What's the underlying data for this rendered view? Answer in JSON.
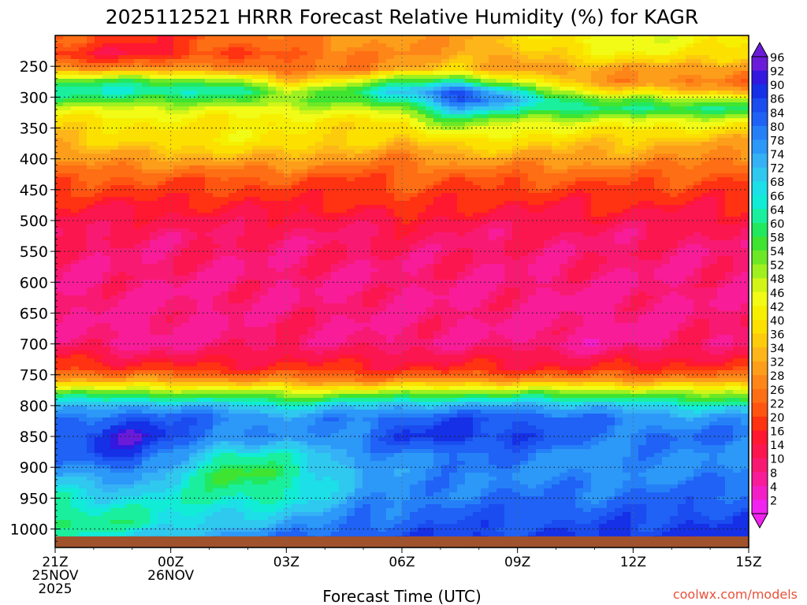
{
  "chart_data": {
    "type": "heatmap",
    "title": "2025112521 HRRR Forecast Relative Humidity (%) for KAGR",
    "xlabel": "Forecast Time (UTC)",
    "ylabel": "",
    "credit": "coolwx.com/models",
    "y_ticks": [
      "250",
      "300",
      "350",
      "400",
      "450",
      "500",
      "550",
      "600",
      "650",
      "700",
      "750",
      "800",
      "850",
      "900",
      "950",
      "1000"
    ],
    "y_values": [
      250,
      300,
      350,
      400,
      450,
      500,
      550,
      600,
      650,
      700,
      750,
      800,
      850,
      900,
      950,
      1000
    ],
    "ylim": [
      200,
      1030
    ],
    "x_ticks": [
      {
        "hours": 0,
        "lines": [
          "21Z",
          "25NOV",
          "2025"
        ]
      },
      {
        "hours": 3,
        "lines": [
          "00Z",
          "26NOV"
        ]
      },
      {
        "hours": 6,
        "lines": [
          "03Z"
        ]
      },
      {
        "hours": 9,
        "lines": [
          "06Z"
        ]
      },
      {
        "hours": 12,
        "lines": [
          "09Z"
        ]
      },
      {
        "hours": 15,
        "lines": [
          "12Z"
        ]
      },
      {
        "hours": 18,
        "lines": [
          "15Z"
        ]
      }
    ],
    "xlim": [
      0,
      18
    ],
    "colorbar": {
      "labels": [
        "96",
        "92",
        "90",
        "86",
        "84",
        "80",
        "78",
        "74",
        "72",
        "68",
        "66",
        "64",
        "60",
        "58",
        "54",
        "52",
        "48",
        "46",
        "42",
        "40",
        "36",
        "34",
        "32",
        "28",
        "26",
        "22",
        "20",
        "16",
        "14",
        "10",
        "8",
        "4",
        "2"
      ],
      "colors": [
        "#6a1bd9",
        "#3318e0",
        "#1530e6",
        "#1a4cf0",
        "#1f62f5",
        "#2580f7",
        "#2c98f8",
        "#35b1f5",
        "#2fc8ef",
        "#1ddfe8",
        "#11ecd6",
        "#1aef9e",
        "#22e860",
        "#3fe431",
        "#6de826",
        "#9ef020",
        "#d2f517",
        "#f2fb16",
        "#f6f000",
        "#fbe000",
        "#fccb0c",
        "#fdb51a",
        "#fd9e1a",
        "#fe8618",
        "#fe6e14",
        "#ff5511",
        "#ff3212",
        "#ff1830",
        "#fb1650",
        "#f81a72",
        "#f81c98",
        "#f41ec6",
        "#f122ef"
      ]
    },
    "surface_pressure": 1012,
    "rh_profiles": [
      {
        "hours": 0,
        "levels": [
          210,
          230,
          255,
          275,
          290,
          305,
          320,
          340,
          370,
          400,
          430,
          470,
          520,
          600,
          700,
          740,
          760,
          780,
          800,
          820,
          850,
          880,
          910,
          950,
          990,
          1012
        ],
        "values": [
          22,
          16,
          30,
          55,
          62,
          56,
          44,
          38,
          32,
          30,
          22,
          16,
          10,
          8,
          10,
          20,
          34,
          56,
          70,
          78,
          82,
          80,
          74,
          64,
          60,
          64
        ]
      },
      {
        "hours": 2,
        "levels": [
          210,
          230,
          255,
          275,
          290,
          305,
          320,
          340,
          370,
          400,
          430,
          470,
          520,
          600,
          700,
          740,
          760,
          780,
          800,
          820,
          850,
          880,
          910,
          950,
          990,
          1012
        ],
        "values": [
          16,
          14,
          28,
          58,
          66,
          56,
          46,
          40,
          38,
          30,
          22,
          16,
          10,
          8,
          6,
          18,
          32,
          54,
          74,
          84,
          92,
          88,
          78,
          68,
          62,
          68
        ]
      },
      {
        "hours": 4.5,
        "levels": [
          210,
          230,
          255,
          275,
          290,
          305,
          320,
          340,
          370,
          400,
          430,
          470,
          520,
          600,
          700,
          740,
          760,
          780,
          800,
          820,
          850,
          880,
          910,
          950,
          990,
          1012
        ],
        "values": [
          22,
          20,
          30,
          54,
          64,
          54,
          44,
          40,
          40,
          32,
          22,
          16,
          10,
          8,
          8,
          16,
          30,
          52,
          70,
          80,
          78,
          62,
          56,
          62,
          70,
          76
        ]
      },
      {
        "hours": 6,
        "levels": [
          210,
          230,
          255,
          275,
          290,
          305,
          320,
          340,
          370,
          400,
          430,
          470,
          520,
          600,
          700,
          740,
          760,
          780,
          800,
          820,
          850,
          880,
          910,
          950,
          990,
          1012
        ],
        "values": [
          26,
          22,
          22,
          34,
          50,
          52,
          46,
          40,
          40,
          32,
          22,
          16,
          10,
          8,
          10,
          18,
          28,
          48,
          66,
          74,
          76,
          66,
          60,
          64,
          74,
          80
        ]
      },
      {
        "hours": 8,
        "levels": [
          210,
          230,
          255,
          275,
          290,
          305,
          320,
          340,
          370,
          400,
          430,
          470,
          520,
          600,
          700,
          740,
          760,
          780,
          800,
          820,
          850,
          880,
          910,
          950,
          990,
          1012
        ],
        "values": [
          28,
          26,
          28,
          48,
          60,
          56,
          46,
          38,
          36,
          28,
          20,
          16,
          10,
          8,
          8,
          16,
          28,
          50,
          70,
          80,
          80,
          76,
          74,
          76,
          80,
          84
        ]
      },
      {
        "hours": 9,
        "levels": [
          210,
          230,
          255,
          275,
          290,
          305,
          320,
          340,
          370,
          400,
          430,
          470,
          520,
          600,
          700,
          740,
          760,
          780,
          800,
          820,
          850,
          880,
          910,
          950,
          990,
          1012
        ],
        "values": [
          28,
          28,
          32,
          56,
          70,
          64,
          52,
          40,
          34,
          26,
          22,
          20,
          12,
          8,
          8,
          16,
          28,
          52,
          72,
          82,
          86,
          78,
          76,
          78,
          82,
          84
        ]
      },
      {
        "hours": 10.5,
        "levels": [
          210,
          230,
          255,
          275,
          290,
          305,
          320,
          340,
          370,
          400,
          430,
          470,
          520,
          600,
          700,
          740,
          760,
          780,
          800,
          820,
          850,
          880,
          910,
          950,
          990,
          1012
        ],
        "values": [
          30,
          30,
          36,
          64,
          86,
          84,
          72,
          56,
          40,
          30,
          22,
          16,
          10,
          8,
          8,
          16,
          30,
          54,
          74,
          84,
          88,
          80,
          78,
          80,
          84,
          86
        ]
      },
      {
        "hours": 12,
        "levels": [
          210,
          230,
          255,
          275,
          290,
          305,
          320,
          340,
          370,
          400,
          430,
          470,
          520,
          600,
          700,
          740,
          760,
          780,
          800,
          820,
          850,
          880,
          910,
          950,
          990,
          1012
        ],
        "values": [
          36,
          34,
          30,
          44,
          62,
          72,
          64,
          46,
          38,
          30,
          22,
          16,
          10,
          8,
          8,
          16,
          30,
          54,
          74,
          84,
          86,
          80,
          78,
          80,
          84,
          86
        ]
      },
      {
        "hours": 14,
        "levels": [
          210,
          230,
          255,
          275,
          290,
          305,
          320,
          340,
          370,
          400,
          430,
          470,
          520,
          600,
          700,
          740,
          760,
          780,
          800,
          820,
          850,
          880,
          910,
          950,
          990,
          1012
        ],
        "values": [
          44,
          40,
          30,
          30,
          40,
          54,
          60,
          44,
          36,
          30,
          22,
          16,
          10,
          8,
          6,
          16,
          30,
          54,
          72,
          80,
          80,
          76,
          76,
          80,
          84,
          86
        ]
      },
      {
        "hours": 16,
        "levels": [
          210,
          230,
          255,
          275,
          290,
          305,
          320,
          340,
          370,
          400,
          430,
          470,
          520,
          600,
          700,
          740,
          760,
          780,
          800,
          820,
          850,
          880,
          910,
          950,
          990,
          1012
        ],
        "values": [
          44,
          42,
          30,
          26,
          34,
          52,
          62,
          44,
          34,
          28,
          22,
          16,
          10,
          8,
          8,
          18,
          30,
          50,
          66,
          76,
          80,
          78,
          78,
          82,
          86,
          88
        ]
      },
      {
        "hours": 18,
        "levels": [
          210,
          230,
          255,
          275,
          290,
          305,
          320,
          340,
          370,
          400,
          430,
          470,
          520,
          600,
          700,
          740,
          760,
          780,
          800,
          820,
          850,
          880,
          910,
          950,
          990,
          1012
        ],
        "values": [
          40,
          36,
          28,
          24,
          32,
          50,
          60,
          42,
          32,
          26,
          20,
          16,
          10,
          8,
          10,
          18,
          30,
          50,
          66,
          76,
          80,
          78,
          78,
          82,
          86,
          88
        ]
      }
    ]
  }
}
